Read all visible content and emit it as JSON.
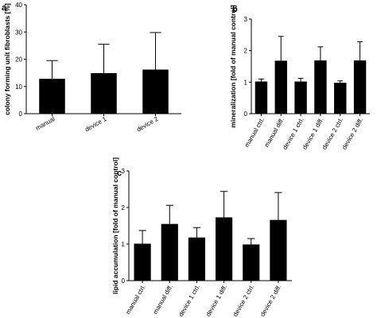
{
  "chart_data": [
    {
      "panel": "a",
      "type": "bar",
      "categories": [
        "manual",
        "device 1",
        "device 2"
      ],
      "values": [
        12.8,
        14.9,
        16.2
      ],
      "errors": [
        6.7,
        10.6,
        13.6
      ],
      "ylabel": "colony forming unit fibroblasts [%]",
      "ylim": [
        0,
        40
      ],
      "yticks": [
        0,
        10,
        20,
        30,
        40
      ],
      "xlabel_rotation": -30
    },
    {
      "panel": "b",
      "type": "bar",
      "categories": [
        "manual ctrl.",
        "manual diff.",
        "device 1 ctrl.",
        "device 1 diff.",
        "device 2 ctrl.",
        "device 2 diff."
      ],
      "values": [
        1.02,
        1.68,
        1.02,
        1.69,
        0.98,
        1.69
      ],
      "errors": [
        0.08,
        0.77,
        0.1,
        0.43,
        0.06,
        0.59
      ],
      "ylabel": "mineralization [fold of manual control]",
      "ylim": [
        0,
        3
      ],
      "yticks": [
        0,
        1,
        2,
        3
      ],
      "xlabel_rotation": -60
    },
    {
      "panel": "c",
      "type": "bar",
      "categories": [
        "manual ctrl.",
        "manual diff.",
        "device 1 ctrl.",
        "device 1 diff.",
        "device 2 ctrl.",
        "device 2 diff."
      ],
      "values": [
        1.01,
        1.55,
        1.18,
        1.73,
        0.99,
        1.66
      ],
      "errors": [
        0.36,
        0.51,
        0.27,
        0.71,
        0.16,
        0.75
      ],
      "ylabel": "lipid accumulation [fold of manual control]",
      "ylim": [
        0,
        3
      ],
      "yticks": [
        0,
        1,
        2,
        3
      ],
      "xlabel_rotation": -60
    }
  ],
  "colors": {
    "bar": "#000000",
    "axis": "#000000",
    "background": "#ffffff"
  }
}
